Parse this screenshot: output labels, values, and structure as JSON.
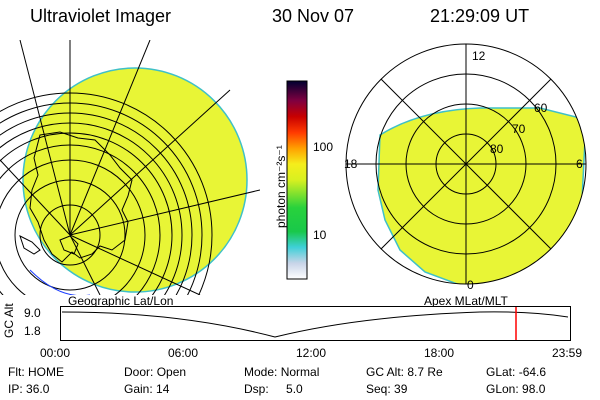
{
  "header": {
    "instrument": "Ultraviolet Imager",
    "date": "30 Nov 07",
    "time": "21:29:09 UT"
  },
  "colorbar": {
    "unit_label": "photon cm⁻²s⁻¹",
    "ticks": [
      "100",
      "10"
    ]
  },
  "left_panel": {
    "label": "Geographic Lat/Lon",
    "fill_color": "#e8f536"
  },
  "right_panel": {
    "label": "Apex MLat/MLT",
    "mlt_labels": {
      "top": "12",
      "left": "18",
      "right": "6",
      "bottom": "0"
    },
    "lat_labels": [
      "60",
      "70",
      "80"
    ],
    "fill_color": "#e8f536"
  },
  "altitude_plot": {
    "axis_label": "GC Alt",
    "y_max": "9.0",
    "y_min": "1.8",
    "x_ticks": [
      "00:00",
      "06:00",
      "12:00",
      "18:00",
      "23:59"
    ],
    "marker_color": "#ff0000"
  },
  "status": {
    "flt_label": "Flt:",
    "flt": "HOME",
    "door_label": "Door:",
    "door": "Open",
    "mode_label": "Mode:",
    "mode": "Normal",
    "gcalt_label": "GC Alt:",
    "gcalt": "8.7 Re",
    "glat_label": "GLat:",
    "glat": "-64.6",
    "ip_label": "IP:",
    "ip": "36.0",
    "gain_label": "Gain:",
    "gain": "14",
    "dsp_label": "Dsp:",
    "dsp": "5.0",
    "seq_label": "Seq:",
    "seq": "39",
    "glon_label": "GLon:",
    "glon": "98.0"
  }
}
